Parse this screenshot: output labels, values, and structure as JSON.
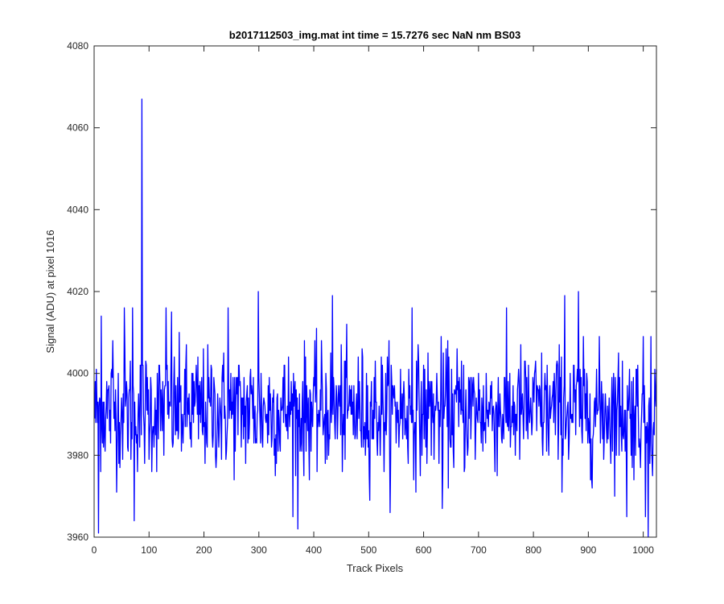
{
  "chart_data": {
    "type": "line",
    "title": "b2017112503_img.mat int time = 15.7276 sec  NaN nm BS03",
    "xlabel": "Track Pixels",
    "ylabel": "Signal (ADU) at pixel 1016",
    "xlim": [
      0,
      1024
    ],
    "ylim": [
      3960,
      4080
    ],
    "x_ticks": [
      0,
      100,
      200,
      300,
      400,
      500,
      600,
      700,
      800,
      900,
      1000
    ],
    "y_ticks": [
      3960,
      3980,
      4000,
      4020,
      4040,
      4060,
      4080
    ],
    "grid": false,
    "series": [
      {
        "color": "#0000ff",
        "x_start": 1,
        "x_step": 1,
        "noise": {
          "num_points": 1024,
          "mean": 3991,
          "std": 7.5,
          "min": 3961,
          "max": 4016
        },
        "peaks": [
          {
            "x": 8,
            "y": 3961
          },
          {
            "x": 13,
            "y": 4014
          },
          {
            "x": 34,
            "y": 4008
          },
          {
            "x": 55,
            "y": 4016
          },
          {
            "x": 70,
            "y": 4016
          },
          {
            "x": 73,
            "y": 3964
          },
          {
            "x": 87,
            "y": 4067
          },
          {
            "x": 131,
            "y": 4016
          },
          {
            "x": 141,
            "y": 4015
          },
          {
            "x": 244,
            "y": 4016
          },
          {
            "x": 299,
            "y": 4020
          },
          {
            "x": 371,
            "y": 3962
          },
          {
            "x": 434,
            "y": 4019
          },
          {
            "x": 579,
            "y": 4016
          },
          {
            "x": 634,
            "y": 3967
          },
          {
            "x": 857,
            "y": 4019
          },
          {
            "x": 882,
            "y": 4020
          },
          {
            "x": 970,
            "y": 3965
          },
          {
            "x": 1004,
            "y": 3965
          },
          {
            "x": 1009,
            "y": 3960
          },
          {
            "x": 1014,
            "y": 4009
          },
          {
            "x": 1020,
            "y": 3985
          }
        ]
      }
    ]
  }
}
